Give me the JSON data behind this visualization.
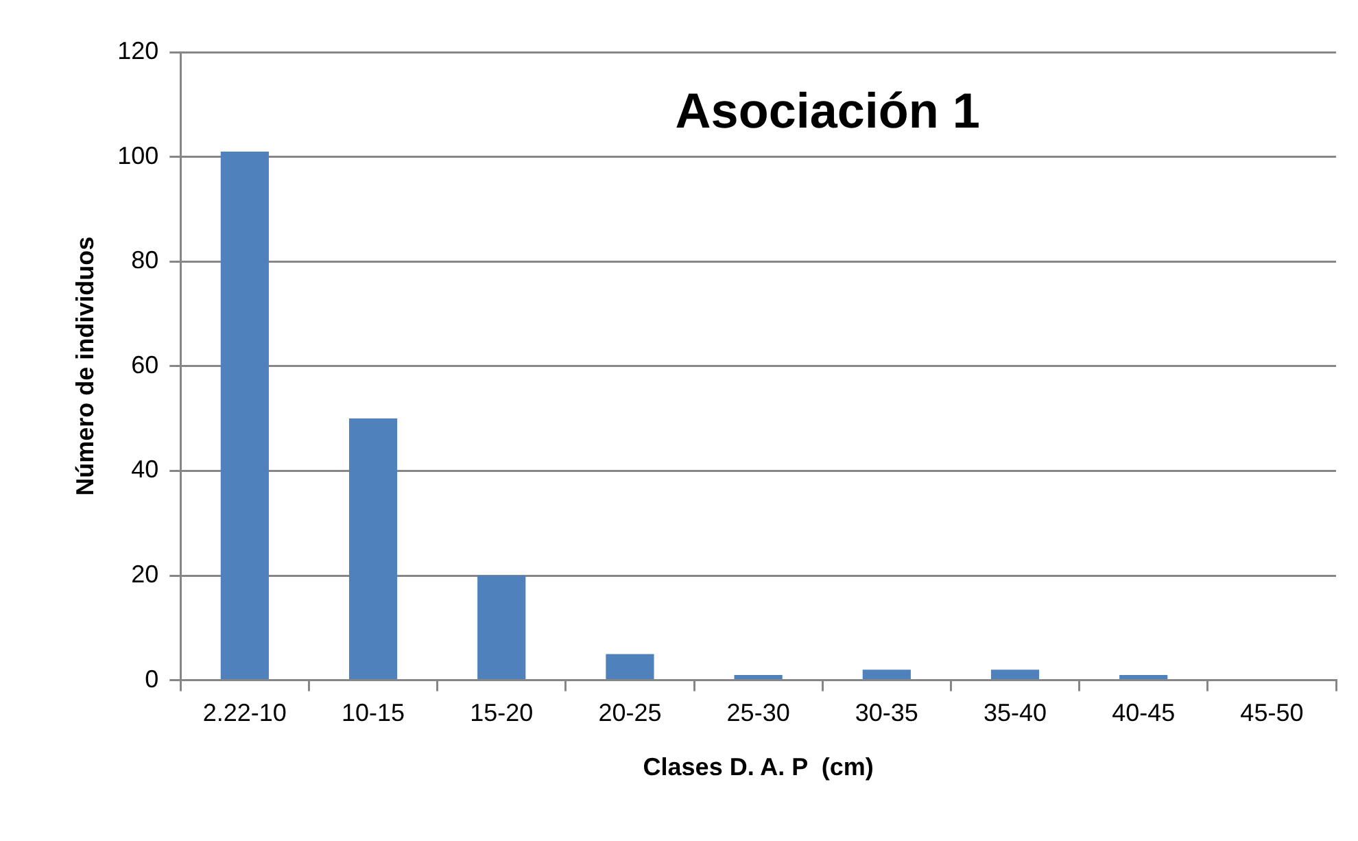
{
  "chart_data": {
    "type": "bar",
    "title": "Asociación 1",
    "xlabel": "Clases D. A. P  (cm)",
    "ylabel": "Número de individuos",
    "categories": [
      "2.22-10",
      "10-15",
      "15-20",
      "20-25",
      "25-30",
      "30-35",
      "35-40",
      "40-45",
      "45-50"
    ],
    "values": [
      101,
      50,
      20,
      5,
      1,
      2,
      2,
      1,
      0
    ],
    "color": "#4f81bd",
    "ylim": [
      0,
      120
    ],
    "yticks": [
      0,
      20,
      40,
      60,
      80,
      100,
      120
    ],
    "grid": "y"
  }
}
